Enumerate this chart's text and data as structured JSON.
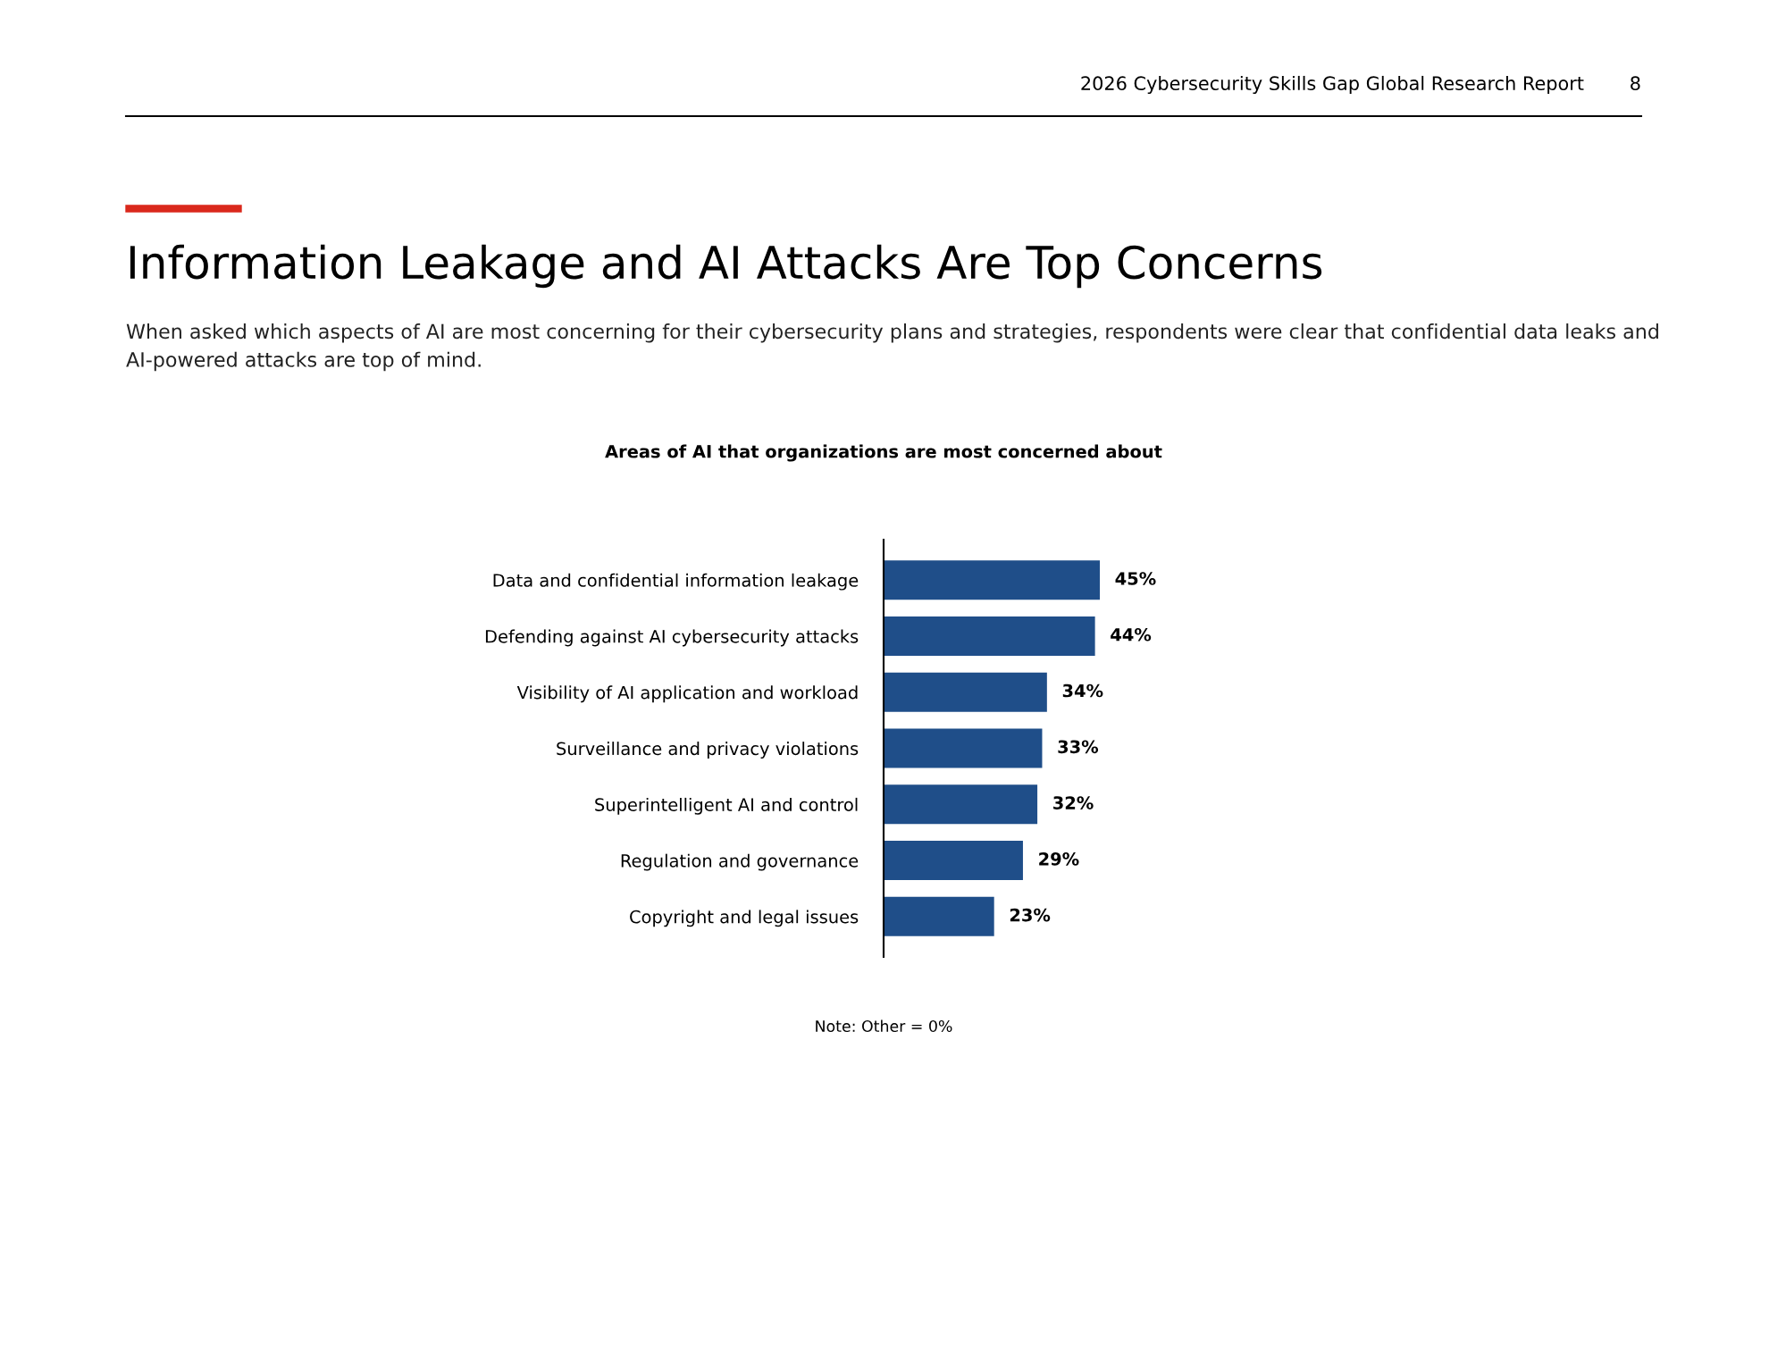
{
  "chart_data": {
    "type": "bar",
    "orientation": "horizontal",
    "title": "Areas of AI that organizations are most concerned about",
    "categories": [
      "Data and confidential information leakage",
      "Defending against AI cybersecurity attacks",
      "Visibility of AI application and workload",
      "Surveillance and privacy violations",
      "Superintelligent AI and control",
      "Regulation and governance",
      "Copyright and legal issues"
    ],
    "values": [
      45,
      44,
      34,
      33,
      32,
      29,
      23
    ],
    "value_labels": [
      "45%",
      "44%",
      "34%",
      "33%",
      "32%",
      "29%",
      "23%"
    ],
    "color": "#1f4e89",
    "grid": false,
    "legend": false,
    "annotations": [
      "2026 Cybersecurity Skills Gap Global Research Report",
      "8",
      "Information Leakage and AI Attacks Are Top Concerns",
      "When asked which aspects of AI are most concerning for their cybersecurity plans and strategies, respondents were clear that confidential data leaks and AI-powered attacks are top of mind.",
      "Note: Other = 0%"
    ]
  }
}
